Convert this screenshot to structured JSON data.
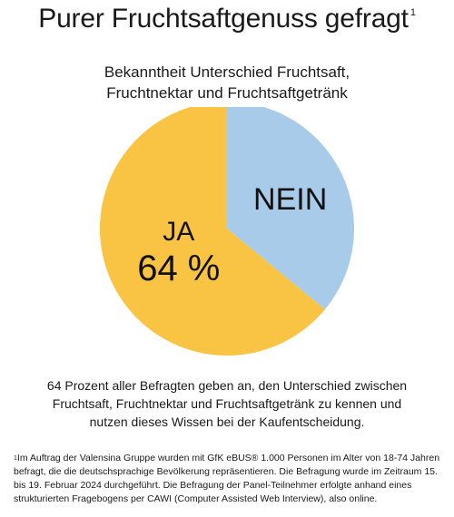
{
  "header": {
    "title": "Purer Fruchtsaftgenuss gefragt",
    "title_footnote_mark": "1"
  },
  "subtitle": {
    "line1": "Bekanntheit Unterschied Fruchtsaft,",
    "line2": "Fruchtnektar und Fruchtsaftgetränk"
  },
  "chart_data": {
    "type": "pie",
    "title": "",
    "slices": [
      {
        "label": "JA",
        "value": 64,
        "value_text": "64 %",
        "color": "#f9c443"
      },
      {
        "label": "NEIN",
        "value": 36,
        "value_text": "",
        "color": "#a9cbea"
      }
    ],
    "legend": "none"
  },
  "description": {
    "line1": "64 Prozent aller Befragten geben an, den Unterschied zwischen",
    "line2": "Fruchtsaft, Fruchtnektar und Fruchtsaftgetränk zu kennen und",
    "line3": "nutzen dieses Wissen bei der Kaufentscheidung."
  },
  "footnote": {
    "mark": "1",
    "line1": "Im Auftrag der Valensina Gruppe wurden mit GfK eBUS® 1.000 Personen im Alter von 18-74 Jahren",
    "line2": "befragt, die die deutschsprachige Bevölkerung repräsentieren. Die Befragung wurde im Zeitraum 15.",
    "line3": "bis 19. Februar 2024 durchgeführt. Die Befragung der Panel-Teilnehmer erfolgte anhand eines",
    "line4": "strukturierten Fragebogens per CAWI (Computer Assisted Web Interview), also online."
  }
}
